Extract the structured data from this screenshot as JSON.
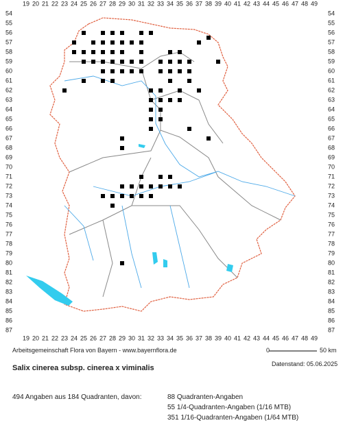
{
  "map": {
    "column_labels": [
      19,
      20,
      21,
      22,
      23,
      24,
      25,
      26,
      27,
      28,
      29,
      30,
      31,
      32,
      33,
      34,
      35,
      36,
      37,
      38,
      39,
      40,
      41,
      42,
      43,
      44,
      45,
      46,
      47,
      48,
      49
    ],
    "row_labels": [
      54,
      55,
      56,
      57,
      58,
      59,
      60,
      61,
      62,
      63,
      64,
      65,
      66,
      67,
      68,
      69,
      70,
      71,
      72,
      73,
      74,
      75,
      76,
      77,
      78,
      79,
      80,
      81,
      82,
      83,
      84,
      85,
      86,
      87
    ],
    "credit": "Arbeitsgemeinschaft Flora von Bayern - www.bayernflora.de",
    "scale_start": "0",
    "scale_end": "50 km",
    "date": "Datenstand: 05.06.2025"
  },
  "species": "Salix cinerea subsp. cinerea x viminalis",
  "summary": {
    "total": "494 Angaben aus 184 Quadranten, davon:",
    "lines": [
      "88 Quadranten-Angaben",
      "55 1/4-Quadranten-Angaben (1/16 MTB)",
      "351 1/16-Quadranten-Angaben (1/64 MTB)"
    ]
  }
}
